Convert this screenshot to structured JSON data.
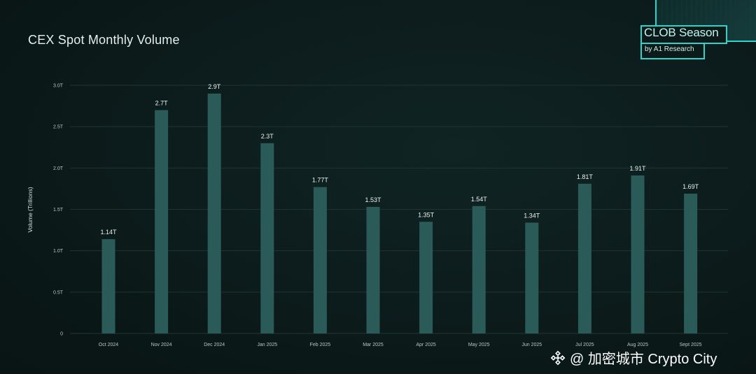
{
  "title": "CEX Spot Monthly Volume",
  "brand": {
    "title": "CLOB Season",
    "subtitle": "by A1 Research",
    "accent": "#2fd3c9"
  },
  "watermark": {
    "text": "@ 加密城市 Crypto City",
    "icon": "binance-diamond-icon"
  },
  "chart_data": {
    "type": "bar",
    "categories": [
      "Oct 2024",
      "Nov 2024",
      "Dec 2024",
      "Jan 2025",
      "Feb 2025",
      "Mar 2025",
      "Apr 2025",
      "May 2025",
      "Jun 2025",
      "Jul 2025",
      "Aug 2025",
      "Sept  2025"
    ],
    "values": [
      1.14,
      2.7,
      2.9,
      2.3,
      1.77,
      1.53,
      1.35,
      1.54,
      1.34,
      1.81,
      1.91,
      1.69
    ],
    "data_labels": [
      "1.14T",
      "2.7T",
      "2.9T",
      "2.3T",
      "1.77T",
      "1.53T",
      "1.35T",
      "1.54T",
      "1.34T",
      "1.81T",
      "1.91T",
      "1.69T"
    ],
    "y_ticks": [
      0,
      0.5,
      1.0,
      1.5,
      2.0,
      2.5,
      3.0
    ],
    "y_tick_labels": [
      "0",
      "0.5T",
      "1.0T",
      "1.5T",
      "2.0T",
      "2.5T",
      "3.0T"
    ],
    "ylim": [
      0,
      3.0
    ],
    "title": "CEX Spot Monthly Volume",
    "xlabel": "",
    "ylabel": "Volume (Trillions)",
    "grid": true,
    "bar_color": "#2a5b58",
    "grid_color": "#1f3535"
  }
}
